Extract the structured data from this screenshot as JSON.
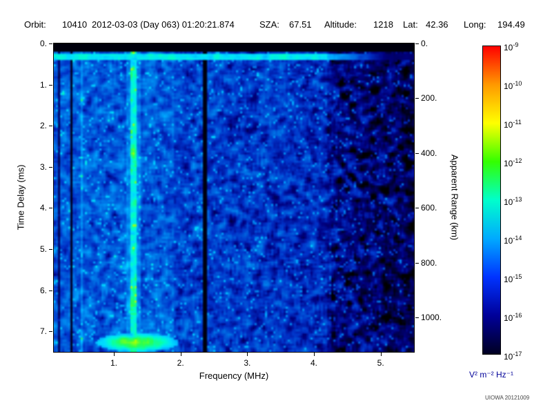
{
  "header": {
    "orbit_label": "Orbit:",
    "orbit_value": "10410",
    "datetime": "2012-03-03 (Day 063) 01:20:21.874",
    "sza_label": "SZA:",
    "sza_value": "67.51",
    "altitude_label": "Altitude:",
    "altitude_value": "1218",
    "lat_label": "Lat:",
    "lat_value": "42.36",
    "long_label": "Long:",
    "long_value": "194.49"
  },
  "chart_data": {
    "type": "heatmap",
    "title": "",
    "xlabel": "Frequency (MHz)",
    "ylabel": "Time Delay (ms)",
    "y2label": "Apparent Range (km)",
    "x_range": [
      0.1,
      5.5
    ],
    "y_range": [
      0,
      7.5
    ],
    "km_per_ms": 150,
    "x_ticks": [
      {
        "v": 1,
        "label": "1."
      },
      {
        "v": 2,
        "label": "2."
      },
      {
        "v": 3,
        "label": "3."
      },
      {
        "v": 4,
        "label": "4."
      },
      {
        "v": 5,
        "label": "5."
      }
    ],
    "y_ticks": [
      {
        "v": 0,
        "label": "0."
      },
      {
        "v": 1,
        "label": "1."
      },
      {
        "v": 2,
        "label": "2."
      },
      {
        "v": 3,
        "label": "3."
      },
      {
        "v": 4,
        "label": "4."
      },
      {
        "v": 5,
        "label": "5."
      },
      {
        "v": 6,
        "label": "6."
      },
      {
        "v": 7,
        "label": "7."
      }
    ],
    "y2_ticks": [
      {
        "v": 0,
        "label": "0."
      },
      {
        "v": 200,
        "label": "200."
      },
      {
        "v": 400,
        "label": "400."
      },
      {
        "v": 600,
        "label": "600."
      },
      {
        "v": 800,
        "label": "800."
      },
      {
        "v": 1000,
        "label": "1000."
      }
    ],
    "colorbar": {
      "scale": "log",
      "tick_exponents": [
        -9,
        -10,
        -11,
        -12,
        -13,
        -14,
        -15,
        -16,
        -17
      ],
      "unit": "V² m⁻² Hz⁻¹",
      "unit_color": "#000099",
      "gradient": [
        "#ff0000",
        "#ff9900",
        "#ffff00",
        "#33ff00",
        "#00ffcc",
        "#00aaff",
        "#0033ff",
        "#000099",
        "#000022"
      ]
    },
    "colormap": [
      [
        0,
        "#000000"
      ],
      [
        0.08,
        "#000030"
      ],
      [
        0.2,
        "#000080"
      ],
      [
        0.32,
        "#0032c8"
      ],
      [
        0.45,
        "#0073e6"
      ],
      [
        0.58,
        "#00aaff"
      ],
      [
        0.7,
        "#00e0ff"
      ],
      [
        0.8,
        "#00ffc8"
      ],
      [
        0.9,
        "#2aff50"
      ],
      [
        1,
        "#b0ff00"
      ]
    ],
    "noise": {
      "seed": 20121009,
      "cells_x": 174,
      "cells_y": 150
    },
    "features": {
      "top_black_band_ms": 0.22,
      "surface_echo_band_ms": [
        0.24,
        0.42
      ],
      "bright_vertical_lines_mhz": [
        {
          "f": 1.3,
          "w": 0.045,
          "gain": 0.28
        },
        {
          "f": 1.3,
          "w": 0.11,
          "gain": 0.1
        },
        {
          "f": 0.52,
          "w": 0.025,
          "gain": 0.12
        }
      ],
      "dark_vertical_lines_mhz": [
        {
          "f": 0.18,
          "w": 0.018,
          "mult": 0.4
        },
        {
          "f": 0.36,
          "w": 0.025,
          "mult": 0.15
        },
        {
          "f": 2.36,
          "w": 0.035,
          "mult": 0.08
        }
      ],
      "ground_echo": {
        "t_center": 7.27,
        "t_halfwidth": 0.23,
        "f_center": 1.35,
        "f_halfwidth": 0.62
      },
      "dark_patch_threshold_mhz": 4.25
    }
  },
  "footer": {
    "credit": "UIOWA 20121009"
  }
}
